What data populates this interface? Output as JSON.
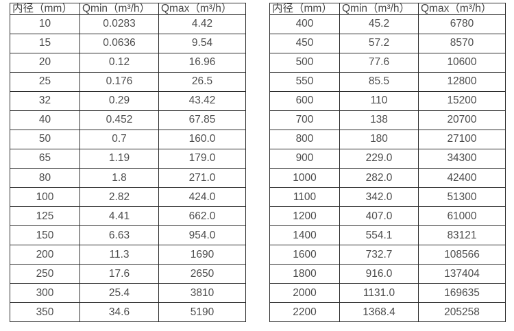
{
  "colors": {
    "background": "#ffffff",
    "border": "#2b2b2b",
    "text": "#4d4d4d"
  },
  "chart_data": [
    {
      "type": "table",
      "title": "",
      "headers": [
        "内径（mm）",
        "Qmin（m³/h）",
        "Qmax（m³/h）"
      ],
      "rows": [
        [
          "10",
          "0.0283",
          "4.42"
        ],
        [
          "15",
          "0.0636",
          "9.54"
        ],
        [
          "20",
          "0.12",
          "16.96"
        ],
        [
          "25",
          "0.176",
          "26.5"
        ],
        [
          "32",
          "0.29",
          "43.42"
        ],
        [
          "40",
          "0.452",
          "67.85"
        ],
        [
          "50",
          "0.7",
          "160.0"
        ],
        [
          "65",
          "1.19",
          "179.0"
        ],
        [
          "80",
          "1.8",
          "271.0"
        ],
        [
          "100",
          "2.82",
          "424.0"
        ],
        [
          "125",
          "4.41",
          "662.0"
        ],
        [
          "150",
          "6.63",
          "954.0"
        ],
        [
          "200",
          "11.3",
          "1690"
        ],
        [
          "250",
          "17.6",
          "2650"
        ],
        [
          "300",
          "25.4",
          "3810"
        ],
        [
          "350",
          "34.6",
          "5190"
        ]
      ]
    },
    {
      "type": "table",
      "title": "",
      "headers": [
        "内径（mm）",
        "Qmin（m³/h）",
        "Qmax（m³/h）"
      ],
      "rows": [
        [
          "400",
          "45.2",
          "6780"
        ],
        [
          "450",
          "57.2",
          "8570"
        ],
        [
          "500",
          "77.6",
          "10600"
        ],
        [
          "550",
          "85.5",
          "12800"
        ],
        [
          "600",
          "110",
          "15200"
        ],
        [
          "700",
          "138",
          "20700"
        ],
        [
          "800",
          "180",
          "27100"
        ],
        [
          "900",
          "229.0",
          "34300"
        ],
        [
          "1000",
          "282.0",
          "42400"
        ],
        [
          "1100",
          "342.0",
          "51300"
        ],
        [
          "1200",
          "407.0",
          "61000"
        ],
        [
          "1400",
          "554.1",
          "83121"
        ],
        [
          "1600",
          "732.7",
          "108566"
        ],
        [
          "1800",
          "916.0",
          "137404"
        ],
        [
          "2000",
          "1131.0",
          "169635"
        ],
        [
          "2200",
          "1368.4",
          "205258"
        ]
      ]
    }
  ]
}
